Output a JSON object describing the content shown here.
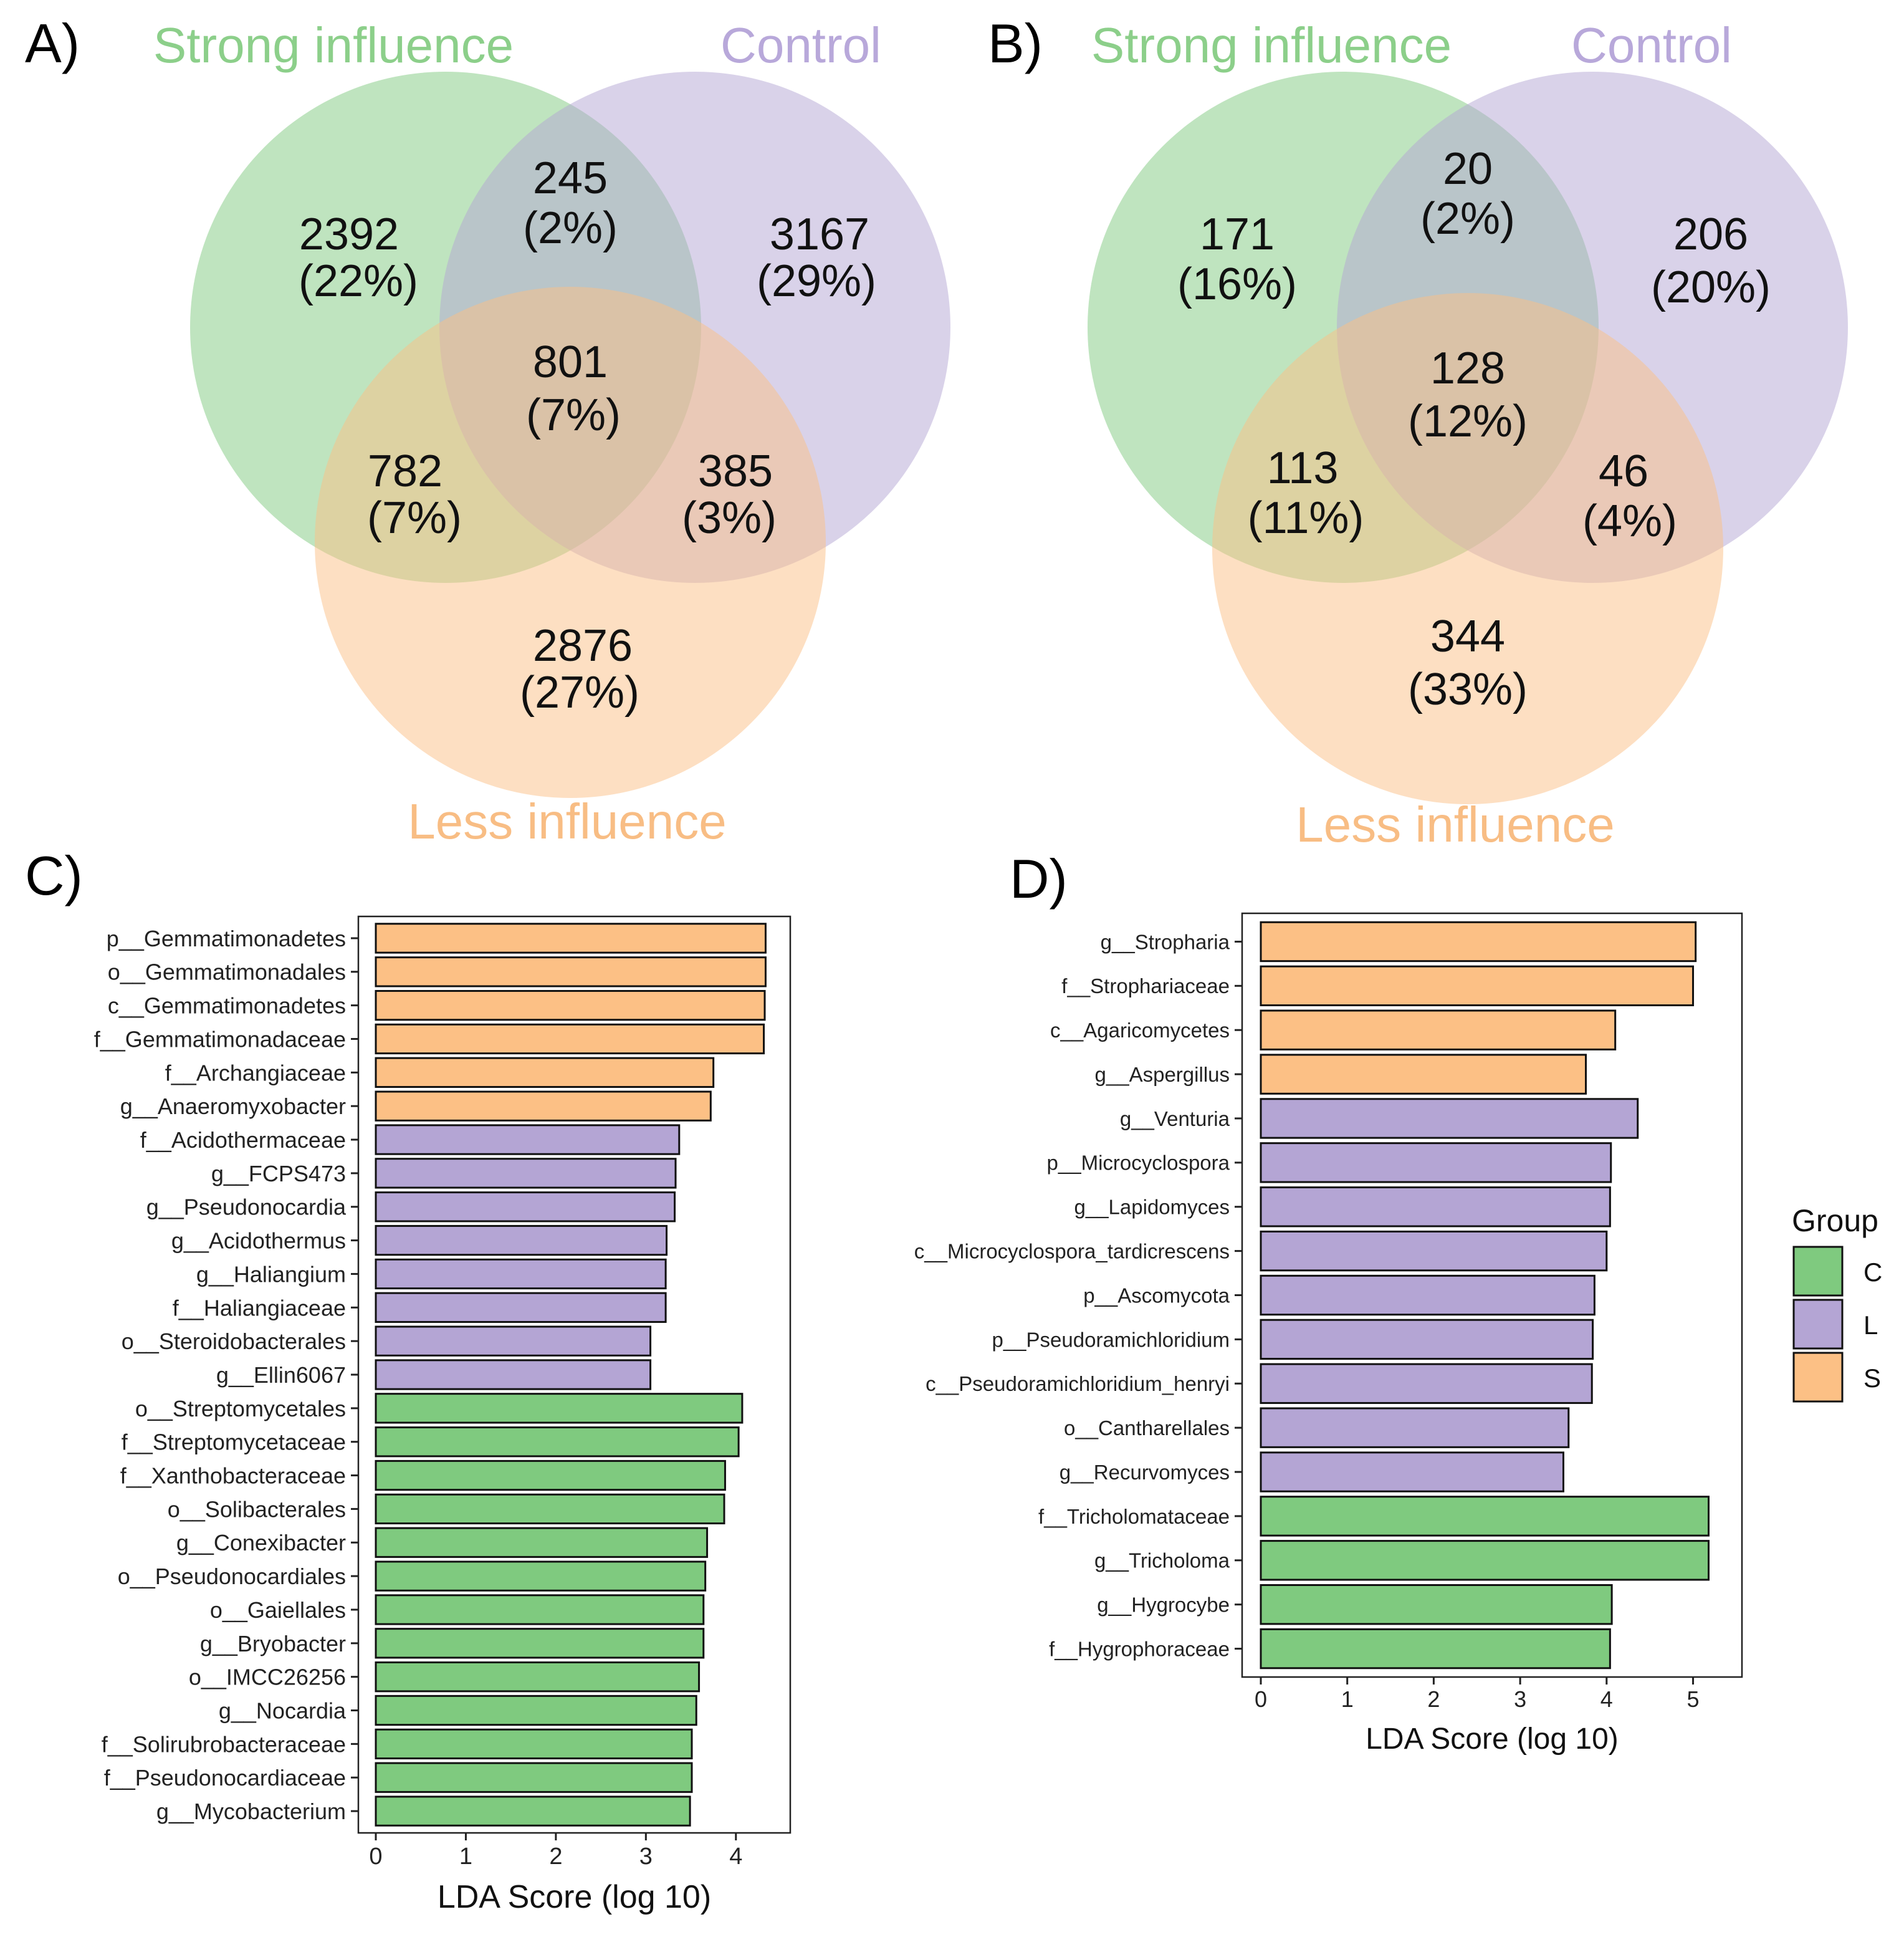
{
  "chart_data": [
    {
      "panel": "A)",
      "type": "venn",
      "sets": [
        {
          "name": "Strong influence",
          "color": "#7fca7f"
        },
        {
          "name": "Control",
          "color": "#b4a5d4"
        },
        {
          "name": "Less influence",
          "color": "#fcc085"
        }
      ],
      "regions": {
        "strong_only": {
          "count": "2392",
          "pct": "(22%)"
        },
        "strong_control": {
          "count": "245",
          "pct": "(2%)"
        },
        "control_only": {
          "count": "3167",
          "pct": "(29%)"
        },
        "all_three": {
          "count": "801",
          "pct": "(7%)"
        },
        "strong_less": {
          "count": "782",
          "pct": "(7%)"
        },
        "control_less": {
          "count": "385",
          "pct": "(3%)"
        },
        "less_only": {
          "count": "2876",
          "pct": "(27%)"
        }
      }
    },
    {
      "panel": "B)",
      "type": "venn",
      "sets": [
        {
          "name": "Strong influence",
          "color": "#7fca7f"
        },
        {
          "name": "Control",
          "color": "#b4a5d4"
        },
        {
          "name": "Less influence",
          "color": "#fcc085"
        }
      ],
      "regions": {
        "strong_only": {
          "count": "171",
          "pct": "(16%)"
        },
        "strong_control": {
          "count": "20",
          "pct": "(2%)"
        },
        "control_only": {
          "count": "206",
          "pct": "(20%)"
        },
        "all_three": {
          "count": "128",
          "pct": "(12%)"
        },
        "strong_less": {
          "count": "113",
          "pct": "(11%)"
        },
        "control_less": {
          "count": "46",
          "pct": "(4%)"
        },
        "less_only": {
          "count": "344",
          "pct": "(33%)"
        }
      }
    },
    {
      "panel": "C)",
      "type": "bar",
      "orientation": "horizontal",
      "xlabel": "LDA Score (log 10)",
      "xlim": [
        0,
        4.5
      ],
      "xticks": [
        "0",
        "1",
        "2",
        "3",
        "4"
      ],
      "categories": [
        "p__Gemmatimonadetes",
        "o__Gemmatimonadales",
        "c__Gemmatimonadetes",
        "f__Gemmatimonadaceae",
        "f__Archangiaceae",
        "g__Anaeromyxobacter",
        "f__Acidothermaceae",
        "g__FCPS473",
        "g__Pseudonocardia",
        "g__Acidothermus",
        "g__Haliangium",
        "f__Haliangiaceae",
        "o__Steroidobacterales",
        "g__Ellin6067",
        "o__Streptomycetales",
        "f__Streptomycetaceae",
        "f__Xanthobacteraceae",
        "o__Solibacterales",
        "g__Conexibacter",
        "o__Pseudonocardiales",
        "o__Gaiellales",
        "g__Bryobacter",
        "o__IMCC26256",
        "g__Nocardia",
        "f__Solirubrobacteraceae",
        "f__Pseudonocardiaceae",
        "g__Mycobacterium"
      ],
      "values": [
        4.33,
        4.33,
        4.32,
        4.31,
        3.75,
        3.72,
        3.37,
        3.33,
        3.32,
        3.23,
        3.22,
        3.22,
        3.05,
        3.05,
        4.07,
        4.03,
        3.88,
        3.87,
        3.68,
        3.66,
        3.64,
        3.64,
        3.59,
        3.56,
        3.51,
        3.51,
        3.49
      ],
      "groups": [
        "S",
        "S",
        "S",
        "S",
        "S",
        "S",
        "L",
        "L",
        "L",
        "L",
        "L",
        "L",
        "L",
        "L",
        "C",
        "C",
        "C",
        "C",
        "C",
        "C",
        "C",
        "C",
        "C",
        "C",
        "C",
        "C",
        "C"
      ]
    },
    {
      "panel": "D)",
      "type": "bar",
      "orientation": "horizontal",
      "xlabel": "LDA Score (log 10)",
      "xlim": [
        0,
        5.4
      ],
      "xticks": [
        "0",
        "1",
        "2",
        "3",
        "4",
        "5"
      ],
      "categories": [
        "g__Stropharia",
        "f__Strophariaceae",
        "c__Agaricomycetes",
        "g__Aspergillus",
        "g__Venturia",
        "p__Microcyclospora",
        "g__Lapidomyces",
        "c__Microcyclospora_tardicrescens",
        "p__Ascomycota",
        "p__Pseudoramichloridium",
        "c__Pseudoramichloridium_henryi",
        "o__Cantharellales",
        "g__Recurvomyces",
        "f__Tricholomataceae",
        "g__Tricholoma",
        "g__Hygrocybe",
        "f__Hygrophoraceae"
      ],
      "values": [
        5.03,
        5.0,
        4.1,
        3.76,
        4.36,
        4.05,
        4.04,
        4.0,
        3.86,
        3.84,
        3.83,
        3.56,
        3.5,
        5.18,
        5.18,
        4.06,
        4.04
      ],
      "groups": [
        "S",
        "S",
        "S",
        "S",
        "L",
        "L",
        "L",
        "L",
        "L",
        "L",
        "L",
        "L",
        "L",
        "C",
        "C",
        "C",
        "C"
      ],
      "legend": {
        "title": "Group",
        "entries": [
          {
            "key": "C",
            "color": "#7fca7f"
          },
          {
            "key": "L",
            "color": "#b4a5d4"
          },
          {
            "key": "S",
            "color": "#fcc085"
          }
        ]
      }
    }
  ],
  "group_colors": {
    "C": "#7fca7f",
    "L": "#b4a5d4",
    "S": "#fcc085"
  },
  "title_colors": {
    "strong": "#8ccf8a",
    "control": "#b8a8da",
    "less": "#f8bd84"
  }
}
